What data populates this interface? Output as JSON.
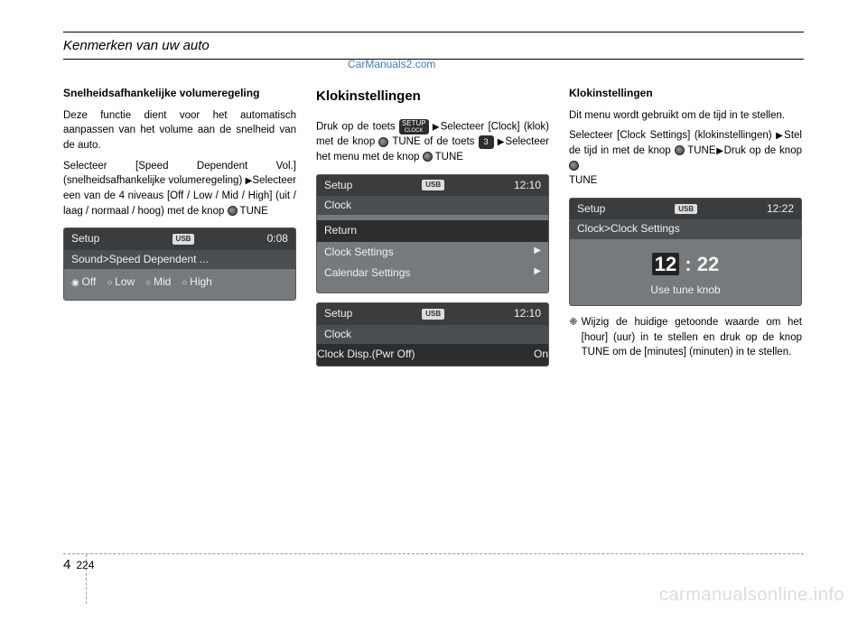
{
  "header": {
    "title": "Kenmerken van uw auto"
  },
  "watermark_top": "CarManuals2.com",
  "watermark_bottom": "carmanualsonline.info",
  "col1": {
    "subhead": "Snelheidsafhankelijke volumeregeling",
    "p1": "Deze functie dient voor het automatisch aanpassen van het volume aan de snelheid van de auto.",
    "p2a": "Selecteer [Speed Dependent Vol.] (snelheidsafhankelijke volumeregeling)",
    "p2b": "Selecteer een van de 4 niveaus [Off / Low / Mid / High] (uit / laag / normaal / hoog) met de knop ",
    "p2c": " TUNE",
    "screen": {
      "setup_label": "Setup",
      "usb": "USB",
      "time": "0:08",
      "title": "Sound>Speed Dependent ...",
      "opts": {
        "off": "Off",
        "low": "Low",
        "mid": "Mid",
        "high": "High"
      }
    }
  },
  "col2": {
    "section": "Klokinstellingen",
    "p1a": "Druk op de toets ",
    "p1b": "Selecteer [Clock] (klok) met de knop ",
    "p1c": " TUNE of de toets ",
    "p1d": "Selecteer het menu met de knop ",
    "p1e": " TUNE",
    "btn_setup_top": "SETUP",
    "btn_setup_bot": "CLOCK",
    "btn_num": "3",
    "screen1": {
      "setup_label": "Setup",
      "usb": "USB",
      "time": "12:10",
      "title": "Clock",
      "items": {
        "return": "Return",
        "cs": "Clock Settings",
        "cal": "Calendar Settings"
      }
    },
    "screen2": {
      "setup_label": "Setup",
      "usb": "USB",
      "time": "12:10",
      "title": "Clock",
      "item": "Clock Disp.(Pwr Off)",
      "val": "On"
    }
  },
  "col3": {
    "subhead": "Klokinstellingen",
    "p1": "Dit menu wordt gebruikt om de tijd in te stellen.",
    "p2a": "Selecteer [Clock Settings] (klokinstellingen) ",
    "p2b": "Stel de tijd in met de knop ",
    "p2c": " TUNE",
    "p2d": "Druk op de knop ",
    "p2e": " TUNE",
    "screen": {
      "setup_label": "Setup",
      "usb": "USB",
      "time": "12:22",
      "title": "Clock>Clock Settings",
      "h": "12",
      "m": "22",
      "sub": "Use tune knob"
    },
    "note_marker": "❈",
    "note": "Wijzig de huidige getoonde waarde om het [hour] (uur) in te stellen en druk op de knop TUNE om de [minutes] (minuten) in te stellen."
  },
  "footer": {
    "chapter": "4",
    "page": "224"
  }
}
